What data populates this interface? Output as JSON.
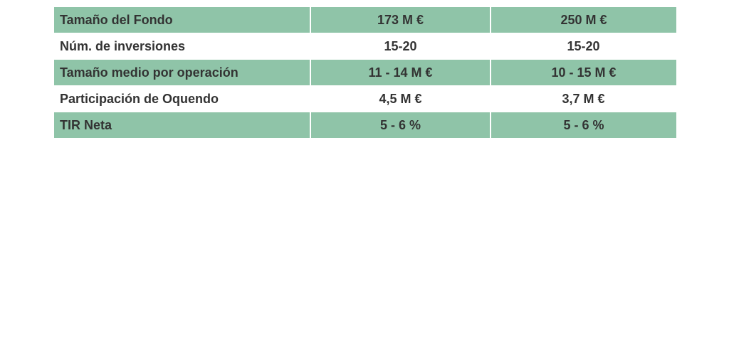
{
  "rows": [
    {
      "label": "Tamaño del Fondo",
      "v1": "173 M €",
      "v2": "250 M €"
    },
    {
      "label": "Núm. de inversiones",
      "v1": "15-20",
      "v2": "15-20"
    },
    {
      "label": "Tamaño medio por operación",
      "v1": "11 - 14 M €",
      "v2": "10 - 15 M €"
    },
    {
      "label": "Participación de Oquendo",
      "v1": "4,5 M €",
      "v2": "3,7 M €"
    },
    {
      "label": "TIR Neta",
      "v1": "5 - 6 %",
      "v2": "5 - 6 %"
    }
  ],
  "colors": {
    "row_shade": "#8fc4a8",
    "text": "#333333"
  }
}
